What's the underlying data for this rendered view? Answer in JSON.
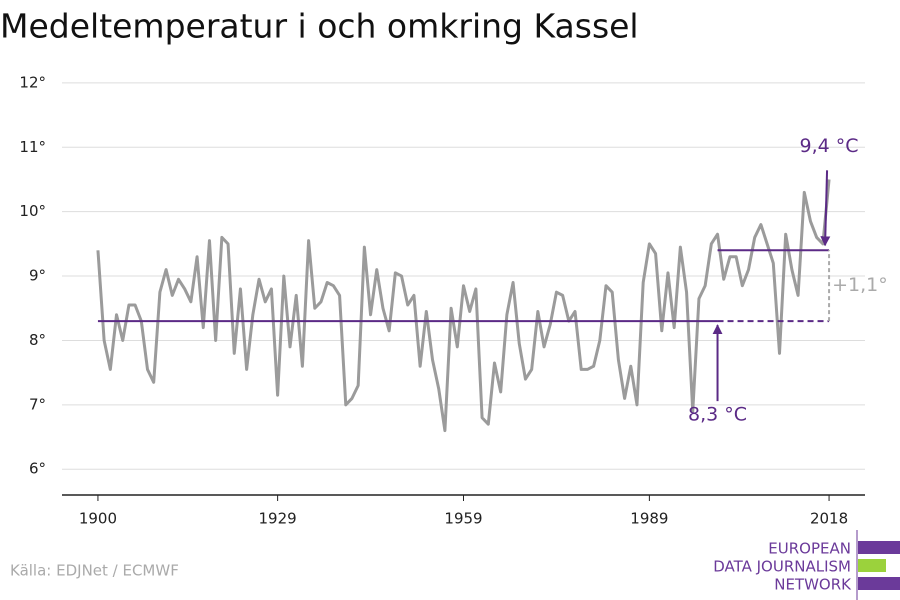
{
  "chart_data": {
    "type": "line",
    "title": "Medeltemperatur i och omkring Kassel",
    "source": "Källa: EDJNet / ECMWF",
    "logo": [
      "EUROPEAN",
      "DATA JOURNALISM",
      "NETWORK"
    ],
    "x": [
      1900,
      1901,
      1902,
      1903,
      1904,
      1905,
      1906,
      1907,
      1908,
      1909,
      1910,
      1911,
      1912,
      1913,
      1914,
      1915,
      1916,
      1917,
      1918,
      1919,
      1920,
      1921,
      1922,
      1923,
      1924,
      1925,
      1926,
      1927,
      1928,
      1929,
      1930,
      1931,
      1932,
      1933,
      1934,
      1935,
      1936,
      1937,
      1938,
      1939,
      1940,
      1941,
      1942,
      1943,
      1944,
      1945,
      1946,
      1947,
      1948,
      1949,
      1950,
      1951,
      1952,
      1953,
      1954,
      1955,
      1956,
      1957,
      1958,
      1959,
      1960,
      1961,
      1962,
      1963,
      1964,
      1965,
      1966,
      1967,
      1968,
      1969,
      1970,
      1971,
      1972,
      1973,
      1974,
      1975,
      1976,
      1977,
      1978,
      1979,
      1980,
      1981,
      1982,
      1983,
      1984,
      1985,
      1986,
      1987,
      1988,
      1989,
      1990,
      1991,
      1992,
      1993,
      1994,
      1995,
      1996,
      1997,
      1998,
      1999,
      2000,
      2001,
      2002,
      2003,
      2004,
      2005,
      2006,
      2007,
      2008,
      2009,
      2010,
      2011,
      2012,
      2013,
      2014,
      2015,
      2016,
      2017,
      2018
    ],
    "series": [
      {
        "color": "#9b9b9b",
        "values": [
          9.4,
          8.0,
          7.55,
          8.4,
          8.0,
          8.55,
          8.55,
          8.3,
          7.55,
          7.35,
          8.75,
          9.1,
          8.7,
          8.95,
          8.8,
          8.6,
          9.3,
          8.2,
          9.55,
          8.0,
          9.6,
          9.5,
          7.8,
          8.8,
          7.55,
          8.4,
          8.95,
          8.6,
          8.8,
          7.15,
          9.0,
          7.9,
          8.7,
          7.6,
          9.55,
          8.5,
          8.6,
          8.9,
          8.85,
          8.7,
          7.0,
          7.1,
          7.3,
          9.45,
          8.4,
          9.1,
          8.5,
          8.15,
          9.05,
          9.0,
          8.55,
          8.7,
          7.6,
          8.45,
          7.7,
          7.25,
          6.6,
          8.5,
          7.9,
          8.85,
          8.45,
          8.8,
          6.8,
          6.7,
          7.65,
          7.2,
          8.4,
          8.9,
          7.95,
          7.4,
          7.55,
          8.45,
          7.9,
          8.25,
          8.75,
          8.7,
          8.3,
          8.45,
          7.55,
          7.55,
          7.6,
          8.0,
          8.85,
          8.75,
          7.7,
          7.1,
          7.6,
          7.0,
          8.9,
          9.5,
          9.35,
          8.15,
          9.05,
          8.2,
          9.45,
          8.75,
          6.9,
          8.65,
          8.85,
          9.5,
          9.65,
          8.95,
          9.3,
          9.3,
          8.85,
          9.1,
          9.6,
          9.8,
          9.5,
          9.2,
          7.8,
          9.65,
          9.1,
          8.7,
          10.3,
          9.85,
          9.6,
          9.5,
          10.5
        ]
      }
    ],
    "reference_lines": [
      {
        "label": "8,3 °C",
        "value": 8.3,
        "x": [
          1900,
          2000,
          2018
        ],
        "color": "#5b2a86"
      },
      {
        "label": "9,4 °C",
        "value": 9.4,
        "x": [
          2000,
          2018
        ],
        "color": "#5b2a86"
      }
    ],
    "difference": {
      "label": "+1,1°",
      "value": 1.1,
      "color": "#aaaaaa"
    },
    "xlim": [
      1894.2,
      2023.8
    ],
    "xticks": [
      1900,
      1929,
      1959,
      1989,
      2018
    ],
    "ylim": [
      5.6,
      12.2
    ],
    "yticks": [
      {
        "value": 6,
        "label": "6°"
      },
      {
        "value": 7,
        "label": "7°"
      },
      {
        "value": 8,
        "label": "8°"
      },
      {
        "value": 9,
        "label": "9°"
      },
      {
        "value": 10,
        "label": "10°"
      },
      {
        "value": 11,
        "label": "11°"
      },
      {
        "value": 12,
        "label": "12°"
      }
    ],
    "grid": true
  }
}
